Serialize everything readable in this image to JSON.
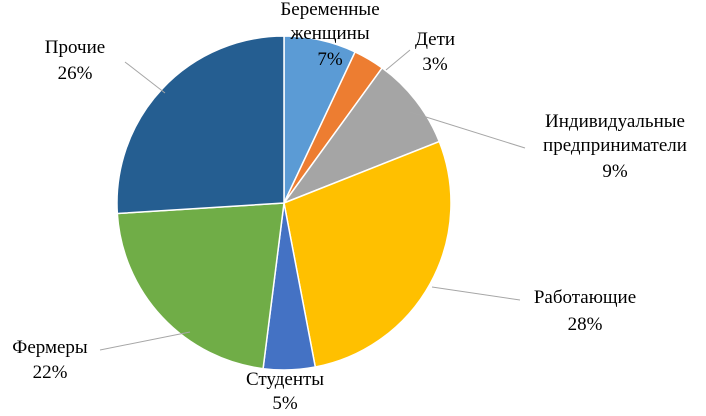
{
  "chart_data": {
    "type": "pie",
    "categories": [
      "Беременные женщины",
      "Дети",
      "Индивидуальные предприниматели",
      "Работающие",
      "Студенты",
      "Фермеры",
      "Прочие"
    ],
    "values": [
      7,
      3,
      9,
      28,
      5,
      22,
      26
    ],
    "value_labels": [
      "7%",
      "3%",
      "9%",
      "28%",
      "5%",
      "22%",
      "26%"
    ],
    "colors": [
      "#5b9bd5",
      "#ed7d31",
      "#a5a5a5",
      "#ffc000",
      "#4472c4",
      "#70ad47",
      "#255e91"
    ]
  }
}
